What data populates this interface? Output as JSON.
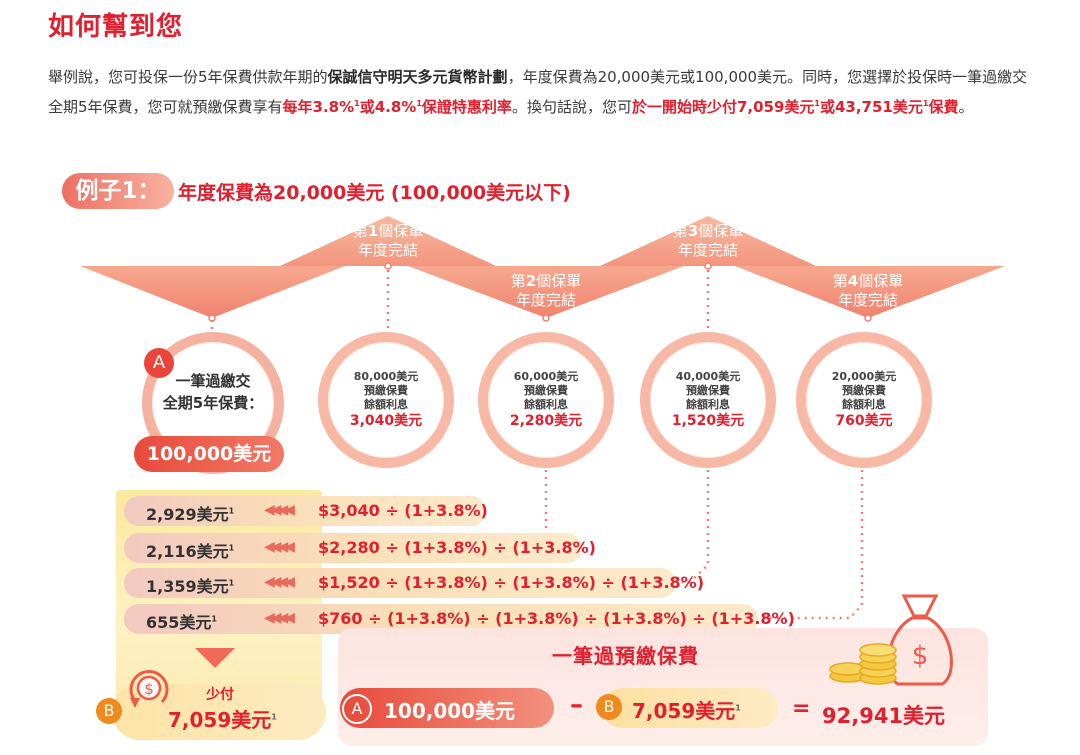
{
  "title": "如何幫到您",
  "intro": {
    "p1": "舉例說，您可投保一份5年保費供款年期的",
    "product": "保誠信守明天多元貨幣計劃",
    "p2": "，年度保費為20,000美元或100,000美元。同時，您選擇於投保時一筆過繳交全期5年保費，您可就預繳保費享有",
    "rate_phrase_1": "每年3.8%",
    "sup1": "1",
    "rate_phrase_2": "或4.8%",
    "sup2": "1",
    "rate_phrase_3": "保證特惠利率",
    "p3": "。換句話說，您可",
    "save_phrase_1": "於一開始時少付7,059美元",
    "sup3": "1",
    "save_phrase_2": "或43,751美元",
    "sup4": "1",
    "save_phrase_3": "保費",
    "p4": "。"
  },
  "example": {
    "label": "例子1：",
    "text": "年度保費為20,000美元 (100,000美元以下)"
  },
  "policy_years": [
    {
      "prefix": "第",
      "num": "1",
      "suffix": "個保單",
      "line2": "年度完結"
    },
    {
      "prefix": "第",
      "num": "2",
      "suffix": "個保單",
      "line2": "年度完結"
    },
    {
      "prefix": "第",
      "num": "3",
      "suffix": "個保單",
      "line2": "年度完結"
    },
    {
      "prefix": "第",
      "num": "4",
      "suffix": "個保單",
      "line2": "年度完結"
    }
  ],
  "circle_a": {
    "badge": "A",
    "line1": "一筆過繳交",
    "line2": "全期5年保費：",
    "amount": "100,000美元"
  },
  "circles": [
    {
      "amount": "80,000美元",
      "line2": "預繳保費",
      "line3": "餘額利息",
      "interest": "3,040美元"
    },
    {
      "amount": "60,000美元",
      "line2": "預繳保費",
      "line3": "餘額利息",
      "interest": "2,280美元"
    },
    {
      "amount": "40,000美元",
      "line2": "預繳保費",
      "line3": "餘額利息",
      "interest": "1,520美元"
    },
    {
      "amount": "20,000美元",
      "line2": "預繳保費",
      "line3": "餘額利息",
      "interest": "760美元"
    }
  ],
  "calc_rows": [
    {
      "amount": "2,929美元",
      "sup": "1",
      "formula": "$3,040 ÷ (1+3.8%)"
    },
    {
      "amount": "2,116美元",
      "sup": "1",
      "formula": "$2,280 ÷ (1+3.8%) ÷ (1+3.8%)"
    },
    {
      "amount": "1,359美元",
      "sup": "1",
      "formula": "$1,520 ÷ (1+3.8%) ÷ (1+3.8%) ÷ (1+3.8%)"
    },
    {
      "amount": "655美元",
      "sup": "1",
      "formula": "$760 ÷ (1+3.8%) ÷ (1+3.8%) ÷ (1+3.8%) ÷ (1+3.8%)"
    }
  ],
  "less_pay": {
    "badge": "B",
    "label": "少付",
    "amount": "7,059美元",
    "sup": "1"
  },
  "lump_sum": {
    "title": "一筆過預繳保費",
    "badge_a": "A",
    "a_amount": "100,000美元",
    "minus": "–",
    "badge_b": "B",
    "b_amount": "7,059美元",
    "b_sup": "1",
    "equals": "=",
    "result": "92,941美元"
  },
  "colors": {
    "accent_red": "#e0202e",
    "triangle_pink": "#f49a86",
    "highlight_yellow": "#fbe9a0"
  },
  "icons": [
    "money-bag-icon",
    "coin-stack-icon",
    "refresh-dollar-icon",
    "triple-chevron-left-icon",
    "down-triangle-icon"
  ]
}
